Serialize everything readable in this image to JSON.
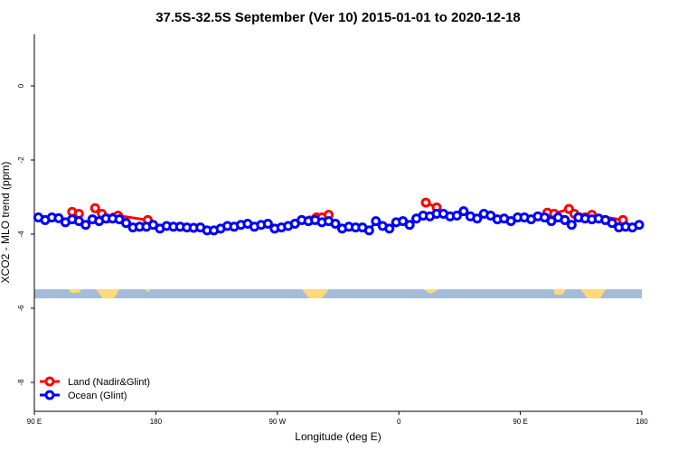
{
  "chart_data": {
    "type": "line",
    "title": "37.5S-32.5S September (Ver 10)   2015-01-01 to 2020-12-18",
    "x_label": "Longitude (deg E)",
    "y_label": "XCO2 - MLO trend (ppm)",
    "xlim": [
      90,
      540
    ],
    "ylim": [
      -8.78,
      1.39
    ],
    "xticks": [
      {
        "value": 90,
        "label": "90 E"
      },
      180,
      {
        "value": 270,
        "label": "90 W"
      },
      {
        "value": 360,
        "label": "0"
      },
      {
        "value": 450,
        "label": "90 E"
      },
      {
        "value": 540,
        "label": "180"
      }
    ],
    "yticks": [
      0,
      -2,
      -4,
      -6,
      -8
    ],
    "legend": "bottom-left",
    "series": [
      {
        "name": "Land (Nadir&Glint)",
        "color": "#ff0000",
        "x": [
          118,
          123,
          null,
          135,
          140,
          144,
          149,
          152,
          174,
          null,
          294,
          299,
          303,
          308,
          null,
          380,
          388,
          null,
          470,
          475,
          486,
          490,
          494,
          498,
          503,
          526
        ],
        "values": [
          -3.4,
          -3.45,
          null,
          -3.3,
          -3.45,
          -3.58,
          -3.55,
          -3.5,
          -3.62,
          null,
          -3.63,
          -3.55,
          -3.55,
          -3.48,
          null,
          -3.15,
          -3.28,
          null,
          -3.42,
          -3.45,
          -3.32,
          -3.45,
          -3.55,
          -3.55,
          -3.48,
          -3.62
        ]
      },
      {
        "name": "Ocean (Glint)",
        "color": "#0000ff",
        "x": [
          93,
          98,
          103,
          108,
          113,
          118,
          123,
          128,
          133,
          138,
          143,
          148,
          153,
          158,
          163,
          168,
          173,
          178,
          183,
          188,
          193,
          198,
          203,
          208,
          213,
          218,
          223,
          228,
          233,
          238,
          243,
          248,
          253,
          258,
          263,
          268,
          273,
          278,
          283,
          288,
          293,
          298,
          303,
          308,
          313,
          318,
          323,
          328,
          333,
          338,
          343,
          348,
          353,
          358,
          363,
          368,
          373,
          378,
          383,
          388,
          393,
          398,
          403,
          408,
          413,
          418,
          423,
          428,
          433,
          438,
          443,
          448,
          453,
          458,
          463,
          468,
          473,
          478,
          483,
          488,
          493,
          498,
          503,
          508,
          513,
          518,
          523,
          528,
          533,
          538
        ],
        "values": [
          -3.55,
          -3.62,
          -3.55,
          -3.57,
          -3.68,
          -3.6,
          -3.65,
          -3.75,
          -3.6,
          -3.65,
          -3.58,
          -3.58,
          -3.6,
          -3.7,
          -3.82,
          -3.8,
          -3.8,
          -3.75,
          -3.85,
          -3.78,
          -3.8,
          -3.8,
          -3.82,
          -3.83,
          -3.82,
          -3.9,
          -3.9,
          -3.85,
          -3.78,
          -3.8,
          -3.75,
          -3.72,
          -3.8,
          -3.75,
          -3.72,
          -3.85,
          -3.82,
          -3.78,
          -3.72,
          -3.62,
          -3.65,
          -3.62,
          -3.68,
          -3.65,
          -3.72,
          -3.85,
          -3.8,
          -3.82,
          -3.82,
          -3.9,
          -3.65,
          -3.78,
          -3.85,
          -3.68,
          -3.65,
          -3.75,
          -3.58,
          -3.5,
          -3.52,
          -3.45,
          -3.45,
          -3.52,
          -3.5,
          -3.38,
          -3.52,
          -3.58,
          -3.45,
          -3.5,
          -3.6,
          -3.58,
          -3.65,
          -3.55,
          -3.55,
          -3.6,
          -3.52,
          -3.55,
          -3.65,
          -3.55,
          -3.62,
          -3.75,
          -3.55,
          -3.58,
          -3.6,
          -3.58,
          -3.62,
          -3.7,
          -3.82,
          -3.8,
          -3.82,
          -3.75
        ]
      }
    ]
  }
}
